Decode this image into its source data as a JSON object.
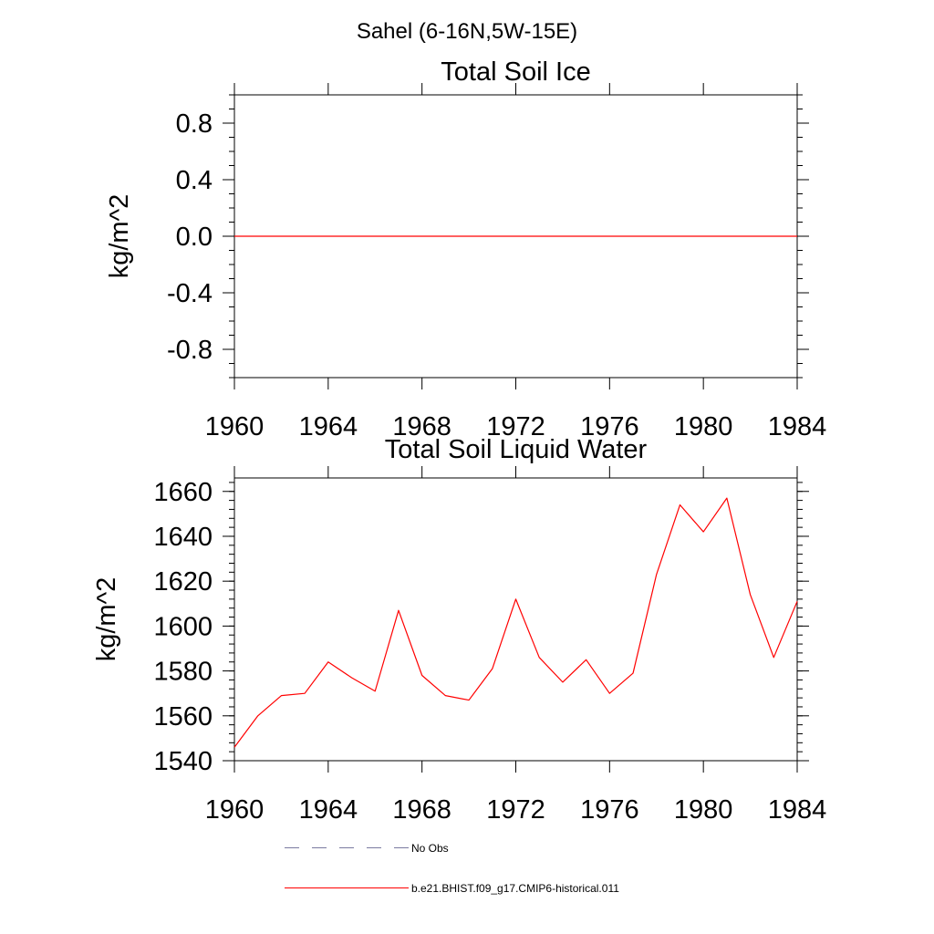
{
  "figure": {
    "title": "Sahel (6-16N,5W-15E)"
  },
  "colors": {
    "model_line": "#ff0000",
    "obs_line": "#7a7aa0",
    "axes": "#000000",
    "background": "#ffffff"
  },
  "legend": {
    "items": [
      {
        "label": "No Obs",
        "style": "dashed",
        "color": "#7a7aa0"
      },
      {
        "label": "b.e21.BHIST.f09_g17.CMIP6-historical.011",
        "style": "solid",
        "color": "#ff0000"
      }
    ]
  },
  "chart_data": [
    {
      "type": "line",
      "title": "Total Soil Ice",
      "xlabel": "",
      "ylabel": "kg/m^2",
      "xlim": [
        1960,
        1984
      ],
      "ylim": [
        -1.0,
        1.0
      ],
      "xticks": [
        1960,
        1964,
        1968,
        1972,
        1976,
        1980,
        1984
      ],
      "yticks": [
        -0.8,
        -0.4,
        0.0,
        0.4,
        0.8
      ],
      "ytick_labels": [
        "-0.8",
        "-0.4",
        "0.0",
        "0.4",
        "0.8"
      ],
      "yminor_step": 0.1,
      "grid": false,
      "series": [
        {
          "name": "b.e21.BHIST.f09_g17.CMIP6-historical.011",
          "color": "#ff0000",
          "x": [
            1960,
            1961,
            1962,
            1963,
            1964,
            1965,
            1966,
            1967,
            1968,
            1969,
            1970,
            1971,
            1972,
            1973,
            1974,
            1975,
            1976,
            1977,
            1978,
            1979,
            1980,
            1981,
            1982,
            1983,
            1984
          ],
          "y": [
            0,
            0,
            0,
            0,
            0,
            0,
            0,
            0,
            0,
            0,
            0,
            0,
            0,
            0,
            0,
            0,
            0,
            0,
            0,
            0,
            0,
            0,
            0,
            0,
            0
          ]
        }
      ]
    },
    {
      "type": "line",
      "title": "Total Soil Liquid Water",
      "xlabel": "",
      "ylabel": "kg/m^2",
      "xlim": [
        1960,
        1984
      ],
      "ylim": [
        1540,
        1666
      ],
      "xticks": [
        1960,
        1964,
        1968,
        1972,
        1976,
        1980,
        1984
      ],
      "yticks": [
        1540,
        1560,
        1580,
        1600,
        1620,
        1640,
        1660
      ],
      "ytick_labels": [
        "1540",
        "1560",
        "1580",
        "1600",
        "1620",
        "1640",
        "1660"
      ],
      "yminor_step": 4,
      "grid": false,
      "series": [
        {
          "name": "b.e21.BHIST.f09_g17.CMIP6-historical.011",
          "color": "#ff0000",
          "x": [
            1960,
            1961,
            1962,
            1963,
            1964,
            1965,
            1966,
            1967,
            1968,
            1969,
            1970,
            1971,
            1972,
            1973,
            1974,
            1975,
            1976,
            1977,
            1978,
            1979,
            1980,
            1981,
            1982,
            1983,
            1984
          ],
          "y": [
            1546,
            1560,
            1569,
            1570,
            1584,
            1577,
            1571,
            1607,
            1578,
            1569,
            1567,
            1581,
            1612,
            1586,
            1575,
            1585,
            1570,
            1579,
            1623,
            1654,
            1642,
            1657,
            1614,
            1586,
            1611
          ]
        }
      ]
    }
  ]
}
